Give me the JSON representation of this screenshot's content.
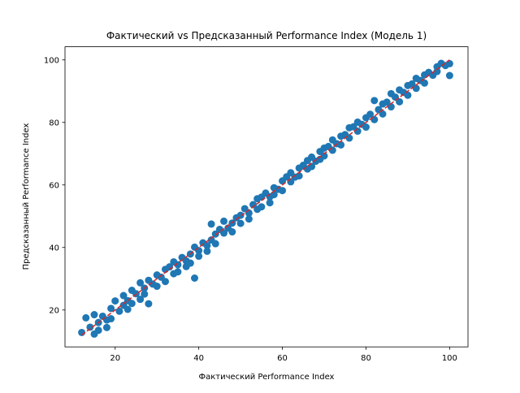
{
  "chart_data": {
    "type": "scatter",
    "title": "Фактический vs Предсказанный Performance Index (Модель 1)",
    "xlabel": "Фактический Performance Index",
    "ylabel": "Предсказанный Performance Index",
    "xlim": [
      8,
      104.4
    ],
    "ylim": [
      8.2,
      104.2
    ],
    "xticks": [
      20,
      40,
      60,
      80,
      100
    ],
    "yticks": [
      20,
      40,
      60,
      80,
      100
    ],
    "grid": false,
    "series": [
      {
        "color": "#1f77b4",
        "points": [
          [
            12,
            12.8
          ],
          [
            13,
            17.5
          ],
          [
            14,
            14.5
          ],
          [
            15,
            12.3
          ],
          [
            15,
            18.5
          ],
          [
            16,
            16.0
          ],
          [
            16,
            13.5
          ],
          [
            17,
            18.0
          ],
          [
            18,
            14.4
          ],
          [
            18,
            16.8
          ],
          [
            19,
            20.5
          ],
          [
            19,
            17.2
          ],
          [
            20,
            22.9
          ],
          [
            21,
            19.6
          ],
          [
            22,
            21.5
          ],
          [
            22,
            24.6
          ],
          [
            23,
            23.0
          ],
          [
            23,
            20.2
          ],
          [
            24,
            26.3
          ],
          [
            24,
            22.1
          ],
          [
            25,
            25.2
          ],
          [
            26,
            23.4
          ],
          [
            26,
            28.7
          ],
          [
            27,
            27.0
          ],
          [
            27,
            25.1
          ],
          [
            28,
            29.5
          ],
          [
            28,
            22.0
          ],
          [
            29,
            28.3
          ],
          [
            30,
            31.2
          ],
          [
            30,
            27.6
          ],
          [
            31,
            30.5
          ],
          [
            32,
            33.0
          ],
          [
            32,
            29.1
          ],
          [
            33,
            33.8
          ],
          [
            34,
            31.6
          ],
          [
            34,
            35.4
          ],
          [
            35,
            34.5
          ],
          [
            35,
            32.2
          ],
          [
            36,
            36.8
          ],
          [
            37,
            35.7
          ],
          [
            37,
            33.9
          ],
          [
            38,
            37.9
          ],
          [
            38,
            35.0
          ],
          [
            39,
            30.2
          ],
          [
            39,
            40.1
          ],
          [
            40,
            39.0
          ],
          [
            40,
            37.2
          ],
          [
            41,
            41.5
          ],
          [
            42,
            40.6
          ],
          [
            42,
            38.8
          ],
          [
            43,
            47.5
          ],
          [
            43,
            42.4
          ],
          [
            44,
            44.3
          ],
          [
            44,
            41.2
          ],
          [
            45,
            45.8
          ],
          [
            46,
            44.6
          ],
          [
            46,
            48.4
          ],
          [
            47,
            46.2
          ],
          [
            48,
            47.8
          ],
          [
            48,
            45.0
          ],
          [
            49,
            49.5
          ],
          [
            50,
            50.3
          ],
          [
            50,
            47.7
          ],
          [
            51,
            52.4
          ],
          [
            52,
            51.0
          ],
          [
            52,
            49.1
          ],
          [
            53,
            53.7
          ],
          [
            54,
            52.2
          ],
          [
            54,
            55.6
          ],
          [
            55,
            56.1
          ],
          [
            55,
            53.0
          ],
          [
            56,
            57.4
          ],
          [
            57,
            56.2
          ],
          [
            57,
            54.3
          ],
          [
            58,
            59.1
          ],
          [
            58,
            56.9
          ],
          [
            59,
            58.6
          ],
          [
            60,
            61.3
          ],
          [
            60,
            58.2
          ],
          [
            61,
            62.6
          ],
          [
            62,
            61.0
          ],
          [
            62,
            63.9
          ],
          [
            63,
            62.5
          ],
          [
            64,
            65.4
          ],
          [
            64,
            62.9
          ],
          [
            65,
            66.3
          ],
          [
            66,
            65.1
          ],
          [
            66,
            67.8
          ],
          [
            67,
            68.9
          ],
          [
            67,
            65.9
          ],
          [
            68,
            67.6
          ],
          [
            69,
            70.7
          ],
          [
            69,
            68.2
          ],
          [
            70,
            71.8
          ],
          [
            70,
            69.3
          ],
          [
            71,
            72.3
          ],
          [
            72,
            71.1
          ],
          [
            72,
            74.4
          ],
          [
            73,
            73.2
          ],
          [
            74,
            75.6
          ],
          [
            74,
            72.8
          ],
          [
            75,
            76.1
          ],
          [
            76,
            75.0
          ],
          [
            76,
            78.3
          ],
          [
            77,
            78.6
          ],
          [
            78,
            77.2
          ],
          [
            78,
            80.1
          ],
          [
            79,
            79.4
          ],
          [
            80,
            81.5
          ],
          [
            80,
            78.5
          ],
          [
            81,
            82.6
          ],
          [
            82,
            80.9
          ],
          [
            82,
            87.0
          ],
          [
            83,
            84.1
          ],
          [
            84,
            82.7
          ],
          [
            84,
            85.9
          ],
          [
            85,
            86.5
          ],
          [
            86,
            85.0
          ],
          [
            86,
            89.2
          ],
          [
            87,
            88.1
          ],
          [
            88,
            86.6
          ],
          [
            88,
            90.4
          ],
          [
            89,
            89.6
          ],
          [
            90,
            91.8
          ],
          [
            90,
            88.7
          ],
          [
            91,
            92.3
          ],
          [
            92,
            90.9
          ],
          [
            92,
            94.1
          ],
          [
            93,
            93.4
          ],
          [
            94,
            95.2
          ],
          [
            94,
            92.6
          ],
          [
            95,
            96.0
          ],
          [
            96,
            95.1
          ],
          [
            97,
            97.8
          ],
          [
            97,
            96.3
          ],
          [
            98,
            98.9
          ],
          [
            99,
            98.2
          ],
          [
            100,
            98.8
          ],
          [
            100,
            95.0
          ]
        ]
      }
    ],
    "reference_line": {
      "x": [
        12,
        100
      ],
      "y": [
        12,
        100
      ],
      "color": "#d62728",
      "style": "dashed"
    }
  }
}
